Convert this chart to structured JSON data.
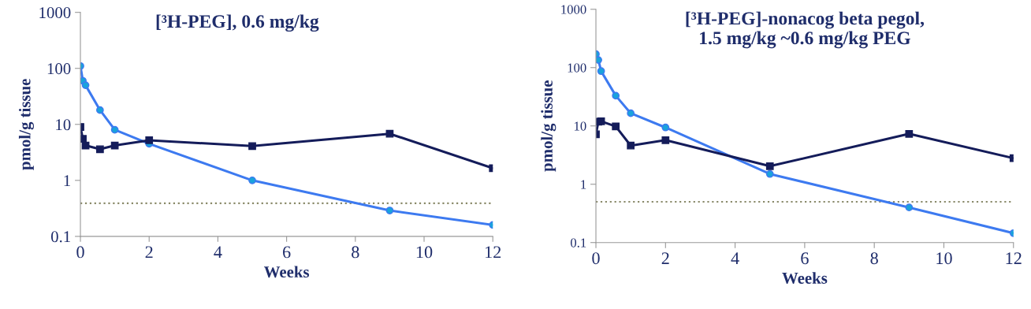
{
  "chart_data": [
    {
      "type": "line",
      "title": "[³H-PEG], 0.6 mg/kg",
      "xlabel": "Weeks",
      "ylabel": "pmol/g tissue",
      "log": "y",
      "grid": false,
      "legend": false,
      "xlim": [
        0,
        12
      ],
      "xticks": [
        0,
        2,
        4,
        6,
        8,
        10,
        12
      ],
      "ylim": [
        0.1,
        1000
      ],
      "yticks": [
        0.1,
        1,
        10,
        100,
        1000
      ],
      "series": [
        {
          "color": "#3d7af0",
          "marker": "circle",
          "x": [
            0,
            0.07,
            0.15,
            0.57,
            1,
            2,
            5,
            9,
            12
          ],
          "values": [
            110,
            60,
            50,
            18,
            8,
            4.5,
            1.0,
            0.29,
            0.16
          ]
        },
        {
          "color": "#141c5a",
          "marker": "square",
          "x": [
            0,
            0.07,
            0.15,
            0.57,
            1,
            2,
            5,
            9,
            12
          ],
          "values": [
            9,
            5.5,
            4.2,
            3.6,
            4.2,
            5.2,
            4.1,
            6.8,
            1.65
          ]
        }
      ],
      "ref_lines": [
        {
          "axis": "y",
          "value": 0.39,
          "label": null,
          "color": "#8a8a6a",
          "line_style": "dotted"
        }
      ]
    },
    {
      "type": "line",
      "title": "[³H-PEG]-nonacog beta pegol,\n1.5 mg/kg ~0.6 mg/kg PEG",
      "xlabel": "Weeks",
      "ylabel": "pmol/g tissue",
      "log": "y",
      "grid": false,
      "legend": false,
      "xlim": [
        0,
        12
      ],
      "xticks": [
        0,
        2,
        4,
        6,
        8,
        10,
        12
      ],
      "ylim": [
        0.1,
        1000
      ],
      "yticks": [
        0.1,
        1,
        10,
        100,
        1000
      ],
      "series": [
        {
          "color": "#3d7af0",
          "marker": "circle",
          "x": [
            0,
            0.07,
            0.15,
            0.57,
            1,
            2,
            5,
            9,
            12
          ],
          "values": [
            170,
            135,
            87,
            33,
            16.5,
            9.4,
            1.5,
            0.4,
            0.145
          ]
        },
        {
          "color": "#141c5a",
          "marker": "square",
          "x": [
            0,
            0.07,
            0.15,
            0.57,
            1,
            2,
            5,
            9,
            12
          ],
          "values": [
            7.2,
            11.8,
            12,
            9.8,
            4.6,
            5.7,
            2.04,
            7.3,
            2.8
          ]
        }
      ],
      "ref_lines": [
        {
          "axis": "y",
          "value": 0.5,
          "label": null,
          "color": "#8a8a6a",
          "line_style": "dotted"
        }
      ]
    }
  ]
}
